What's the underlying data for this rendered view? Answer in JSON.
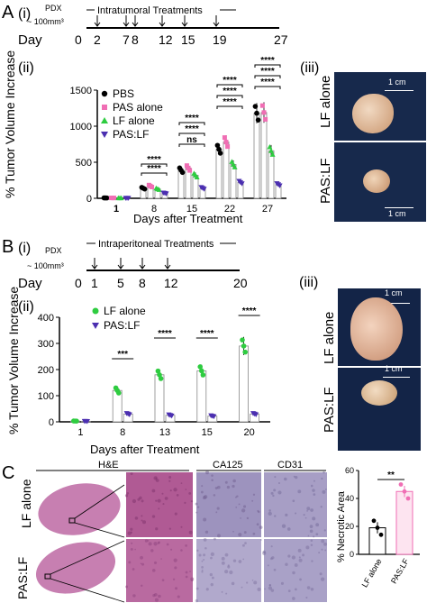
{
  "panels": {
    "A": {
      "letter": "A",
      "sub_i": "(i)",
      "sub_ii": "(ii)",
      "sub_iii": "(iii)",
      "pdx_label": "PDX",
      "pdx_size": "~ 100mm³",
      "timeline_title": "Intratumoral Treatments",
      "day_label": "Day",
      "days": [
        "0",
        "2",
        "7",
        "8",
        "12",
        "15",
        "19",
        "27"
      ],
      "photo_labels": [
        "LF alone",
        "PAS:LF"
      ],
      "scale_label": "1 cm"
    },
    "B": {
      "letter": "B",
      "sub_i": "(i)",
      "sub_ii": "(ii)",
      "sub_iii": "(iii)",
      "pdx_label": "PDX",
      "pdx_size": "~ 100mm³",
      "timeline_title": "Intraperitoneal Treatments",
      "day_label": "Day",
      "days": [
        "0",
        "1",
        "5",
        "8",
        "12",
        "20"
      ],
      "photo_labels": [
        "LF alone",
        "PAS:LF"
      ],
      "scale_label": "1 cm"
    },
    "C": {
      "letter": "C",
      "column_headers": [
        "H&E",
        "CA125",
        "CD31"
      ],
      "row_labels": [
        "LF alone",
        "PAS:LF"
      ]
    }
  },
  "colors": {
    "PBS": "#000000",
    "PAS alone": "#f06eb4",
    "LF alone": "#2ecc40",
    "PAS:LF": "#4b2fb0",
    "C_pink": "#f06eb4"
  },
  "chart_data": [
    {
      "id": "A-ii",
      "type": "bar",
      "ylabel": "% Tumor Volume Increase",
      "xlabel": "Days after Treatment",
      "ylim": [
        0,
        1500
      ],
      "yticks": [
        "0",
        "500",
        "1000",
        "1500"
      ],
      "categories": [
        "1",
        "8",
        "15",
        "22",
        "27"
      ],
      "series": [
        {
          "name": "PBS",
          "values": [
            5,
            140,
            390,
            680,
            1180
          ]
        },
        {
          "name": "PAS alone",
          "values": [
            5,
            170,
            420,
            780,
            1190
          ]
        },
        {
          "name": "LF alone",
          "values": [
            5,
            130,
            320,
            470,
            660
          ]
        },
        {
          "name": "PAS:LF",
          "values": [
            2,
            70,
            140,
            220,
            190
          ]
        }
      ],
      "annotations": [
        "ns",
        "****"
      ]
    },
    {
      "id": "B-ii",
      "type": "bar",
      "ylabel": "% Tumor Volume Increase",
      "xlabel": "Days after Treatment",
      "ylim": [
        0,
        400
      ],
      "yticks": [
        "0",
        "100",
        "200",
        "300",
        "400"
      ],
      "categories": [
        "1",
        "8",
        "13",
        "15",
        "20"
      ],
      "series": [
        {
          "name": "LF alone",
          "values": [
            3,
            120,
            180,
            195,
            290
          ]
        },
        {
          "name": "PAS:LF",
          "values": [
            2,
            30,
            25,
            22,
            30
          ]
        }
      ],
      "annotations": [
        "***",
        "****",
        "****",
        "****"
      ]
    },
    {
      "id": "C-right",
      "type": "bar",
      "ylabel": "% Necrotic Area",
      "ylim": [
        0,
        60
      ],
      "yticks": [
        "0",
        "20",
        "40",
        "60"
      ],
      "categories": [
        "LF alone",
        "PAS:LF"
      ],
      "values": [
        19,
        45
      ],
      "annotations": [
        "**"
      ]
    }
  ]
}
